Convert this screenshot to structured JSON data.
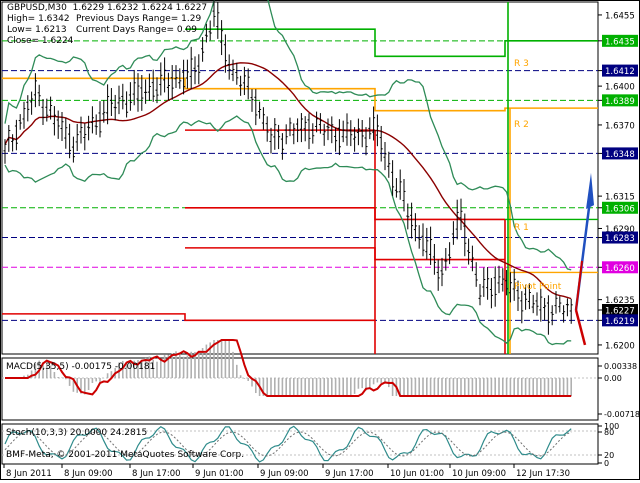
{
  "header": {
    "symbol_line": "GBPUSD,M30  1.6229 1.6232 1.6224 1.6227",
    "high": "High= 1.6342",
    "low": "Low= 1.6213",
    "close": "Close= 1.6224",
    "prev_range": "Previous Days Range= 1.29",
    "curr_range": "Current Days Range= 0.09"
  },
  "main_axis": {
    "ticks": [
      "1.6455",
      "1.6435",
      "1.6412",
      "1.6400",
      "1.6389",
      "1.6370",
      "1.6348",
      "1.6315",
      "1.6306",
      "1.6290",
      "1.6283",
      "1.6260",
      "1.6235",
      "1.6227",
      "1.6219",
      "1.6200"
    ],
    "highlighted": {
      "1.6435": "#00b000",
      "1.6412": "#000080",
      "1.6389": "#00b000",
      "1.6348": "#000080",
      "1.6306": "#00b000",
      "1.6283": "#000080",
      "1.6260": "#e000e0",
      "1.6227": "#000000",
      "1.6219": "#000080"
    }
  },
  "pivot_labels": {
    "r3": "R 3",
    "r2": "R 2",
    "r1": "R 1",
    "pp": "Pivot Point"
  },
  "macd": {
    "title": "MACD(5,35,5) -0.00175 -0.00181",
    "ticks": [
      "0.00338",
      "0.00",
      "-0.00718"
    ]
  },
  "stoch": {
    "title": "Stoch(10,3,3) 20.0000 24.2815",
    "ticks": [
      "100",
      "80",
      "20",
      "0"
    ]
  },
  "copyright": "BMF-Meta, © 2001-2011 MetaQuotes Software Corp.",
  "x_axis": {
    "labels": [
      "8 Jun 2011",
      "8 Jun 09:00",
      "8 Jun 17:00",
      "9 Jun 01:00",
      "9 Jun 09:00",
      "9 Jun 17:00",
      "10 Jun 01:00",
      "10 Jun 09:00",
      "12 Jun 17:30"
    ]
  },
  "colors": {
    "candles": "#000000",
    "bollinger": "#2e8b57",
    "moving_average": "#8b0000",
    "pivot_green": "#00b000",
    "pivot_orange": "#ffa500",
    "pivot_red": "#e00000",
    "level_magenta": "#e000e0",
    "level_navy": "#000080",
    "macd_hist": "#b0b0b0",
    "macd_signal": "#cc0000",
    "stoch_main": "#2e8b8b",
    "stoch_signal": "#707070"
  }
}
